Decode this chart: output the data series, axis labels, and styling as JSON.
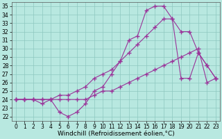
{
  "bg_color": "#b8e8e0",
  "line_color": "#993399",
  "marker": "+",
  "markersize": 4,
  "linewidth": 0.8,
  "xlabel": "Windchill (Refroidissement éolien,°C)",
  "xlabel_fontsize": 6.5,
  "tick_fontsize": 5.5,
  "xlim": [
    -0.5,
    23.5
  ],
  "ylim": [
    21.5,
    35.5
  ],
  "yticks": [
    22,
    23,
    24,
    25,
    26,
    27,
    28,
    29,
    30,
    31,
    32,
    33,
    34,
    35
  ],
  "xticks": [
    0,
    1,
    2,
    3,
    4,
    5,
    6,
    7,
    8,
    9,
    10,
    11,
    12,
    13,
    14,
    15,
    16,
    17,
    18,
    19,
    20,
    21,
    22,
    23
  ],
  "series1_x": [
    0,
    1,
    2,
    3,
    4,
    5,
    6,
    7,
    8,
    9,
    10,
    11,
    12,
    13,
    14,
    15,
    16,
    17,
    18,
    19,
    20,
    21,
    22,
    23
  ],
  "series1_y": [
    24.0,
    24.0,
    24.0,
    24.0,
    24.0,
    24.0,
    24.0,
    24.0,
    24.0,
    24.5,
    25.0,
    25.0,
    25.5,
    26.0,
    26.5,
    27.0,
    27.5,
    28.0,
    28.5,
    29.0,
    29.5,
    30.0,
    26.0,
    26.5
  ],
  "series2_x": [
    0,
    1,
    2,
    3,
    4,
    5,
    6,
    7,
    8,
    9,
    10,
    11,
    12,
    13,
    14,
    15,
    16,
    17,
    18,
    19,
    20,
    21,
    22,
    23
  ],
  "series2_y": [
    24.0,
    24.0,
    24.0,
    24.0,
    24.0,
    24.5,
    24.5,
    25.0,
    25.5,
    26.5,
    27.0,
    27.5,
    28.5,
    29.5,
    30.5,
    31.5,
    32.5,
    33.5,
    33.5,
    32.0,
    32.0,
    29.5,
    28.0,
    26.5
  ],
  "series3_x": [
    0,
    1,
    2,
    3,
    4,
    5,
    6,
    7,
    8,
    9,
    10,
    11,
    12,
    13,
    14,
    15,
    16,
    17,
    18,
    19,
    20,
    21,
    22,
    23
  ],
  "series3_y": [
    24.0,
    24.0,
    24.0,
    23.5,
    24.0,
    22.5,
    22.0,
    22.5,
    23.5,
    25.0,
    25.5,
    27.0,
    28.5,
    31.0,
    31.5,
    34.5,
    35.0,
    35.0,
    33.5,
    26.5,
    26.5,
    29.5,
    28.0,
    26.5
  ]
}
